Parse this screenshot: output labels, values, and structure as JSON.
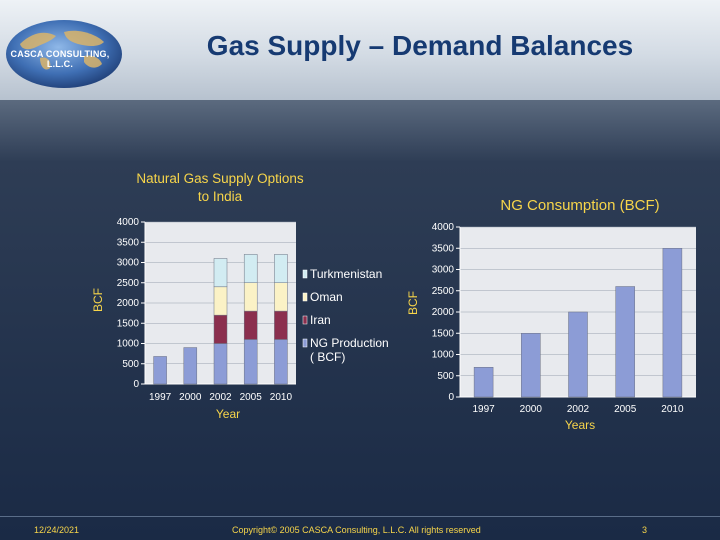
{
  "header": {
    "logo_text": "CASCA CONSULTING, L.L.C.",
    "title": "Gas Supply – Demand Balances"
  },
  "colors": {
    "title": "#163a72",
    "chart_label": "#f7d54a",
    "plot_bg": "#e8eaee",
    "ng_production": "#8c9cd6",
    "iran": "#8b2f4e",
    "oman": "#fbf2c6",
    "turkmenistan": "#d2ecf2",
    "consumption": "#8c9cd6"
  },
  "left_chart": {
    "title": "Natural Gas Supply Options to India"
  },
  "right_chart": {
    "title": "NG Consumption (BCF)"
  },
  "chart_data": [
    {
      "type": "bar",
      "stacked": true,
      "title": "Natural Gas Supply Options to India",
      "xlabel": "Year",
      "ylabel": "BCF",
      "categories": [
        "1997",
        "2000",
        "2002",
        "2005",
        "2010"
      ],
      "ylim": [
        0,
        4000
      ],
      "yticks": [
        0,
        500,
        1000,
        1500,
        2000,
        2500,
        3000,
        3500,
        4000
      ],
      "grid": true,
      "legend_position": "right",
      "series": [
        {
          "name": "NG Production ( BCF)",
          "values": [
            680,
            900,
            1000,
            1100,
            1100
          ]
        },
        {
          "name": "Iran",
          "values": [
            0,
            0,
            700,
            700,
            700
          ]
        },
        {
          "name": "Oman",
          "values": [
            0,
            0,
            700,
            700,
            700
          ]
        },
        {
          "name": "Turkmenistan",
          "values": [
            0,
            0,
            700,
            700,
            700
          ]
        }
      ],
      "legend_order": [
        "Turkmenistan",
        "Oman",
        "Iran",
        "NG Production ( BCF)"
      ]
    },
    {
      "type": "bar",
      "title": "NG Consumption (BCF)",
      "xlabel": "Years",
      "ylabel": "BCF",
      "categories": [
        "1997",
        "2000",
        "2002",
        "2005",
        "2010"
      ],
      "ylim": [
        0,
        4000
      ],
      "yticks": [
        0,
        500,
        1000,
        1500,
        2000,
        2500,
        3000,
        3500,
        4000
      ],
      "grid": true,
      "series": [
        {
          "name": "",
          "values": [
            700,
            1500,
            2000,
            2600,
            3500
          ]
        }
      ]
    }
  ],
  "footer": {
    "date": "12/24/2021",
    "copyright": "Copyright© 2005 CASCA Consulting, L.L.C. All rights reserved",
    "page": "3"
  }
}
